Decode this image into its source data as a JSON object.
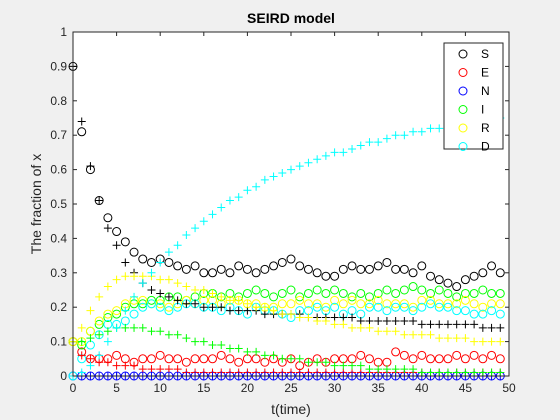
{
  "chart_data": {
    "type": "scatter",
    "title": "SEIRD model",
    "xlabel": "t(time)",
    "ylabel": "The fraction of x",
    "xlim": [
      0,
      50
    ],
    "ylim": [
      0,
      1
    ],
    "xticks": [
      "0",
      "5",
      "10",
      "15",
      "20",
      "25",
      "30",
      "35",
      "40",
      "45",
      "50"
    ],
    "yticks": [
      "0",
      "0.1",
      "0.2",
      "0.3",
      "0.4",
      "0.5",
      "0.6",
      "0.7",
      "0.8",
      "0.9",
      "1"
    ],
    "legend_position": "top-right",
    "legend": [
      {
        "marker": "circle",
        "color": "#000000",
        "label": "S"
      },
      {
        "marker": "circle",
        "color": "#ff0000",
        "label": "E"
      },
      {
        "marker": "circle",
        "color": "#0000ff",
        "label": "N"
      },
      {
        "marker": "circle",
        "color": "#00ff00",
        "label": "I"
      },
      {
        "marker": "circle",
        "color": "#ffff00",
        "label": "R"
      },
      {
        "marker": "circle",
        "color": "#00ffff",
        "label": "D"
      }
    ],
    "x": [
      0,
      1,
      2,
      3,
      4,
      5,
      6,
      7,
      8,
      9,
      10,
      11,
      12,
      13,
      14,
      15,
      16,
      17,
      18,
      19,
      20,
      21,
      22,
      23,
      24,
      25,
      26,
      27,
      28,
      29,
      30,
      31,
      32,
      33,
      34,
      35,
      36,
      37,
      38,
      39,
      40,
      41,
      42,
      43,
      44,
      45,
      46,
      47,
      48,
      49
    ],
    "series": [
      {
        "name": "S",
        "marker": "circle",
        "color": "#000000",
        "values": [
          0.9,
          0.71,
          0.6,
          0.51,
          0.46,
          0.42,
          0.39,
          0.36,
          0.34,
          0.33,
          0.34,
          0.33,
          0.32,
          0.31,
          0.32,
          0.3,
          0.3,
          0.31,
          0.3,
          0.32,
          0.31,
          0.3,
          0.31,
          0.32,
          0.33,
          0.34,
          0.32,
          0.31,
          0.3,
          0.29,
          0.29,
          0.31,
          0.32,
          0.31,
          0.31,
          0.32,
          0.33,
          0.31,
          0.31,
          0.3,
          0.32,
          0.29,
          0.28,
          0.27,
          0.26,
          0.28,
          0.29,
          0.3,
          0.32,
          0.3
        ]
      },
      {
        "name": "E",
        "marker": "circle",
        "color": "#ff0000",
        "values": [
          0.1,
          0.07,
          0.05,
          0.05,
          0.05,
          0.06,
          0.05,
          0.04,
          0.05,
          0.05,
          0.06,
          0.05,
          0.05,
          0.04,
          0.05,
          0.05,
          0.05,
          0.06,
          0.05,
          0.04,
          0.05,
          0.05,
          0.04,
          0.05,
          0.04,
          0.05,
          0.03,
          0.04,
          0.05,
          0.04,
          0.05,
          0.05,
          0.05,
          0.06,
          0.05,
          0.04,
          0.04,
          0.07,
          0.06,
          0.05,
          0.06,
          0.05,
          0.05,
          0.05,
          0.06,
          0.05,
          0.06,
          0.05,
          0.06,
          0.05
        ]
      },
      {
        "name": "N",
        "marker": "circle",
        "color": "#0000ff",
        "values": [
          0,
          0,
          0,
          0,
          0,
          0,
          0,
          0,
          0,
          0,
          0,
          0,
          0,
          0,
          0,
          0,
          0,
          0,
          0,
          0,
          0,
          0,
          0,
          0,
          0,
          0,
          0,
          0,
          0,
          0,
          0,
          0,
          0,
          0,
          0,
          0,
          0,
          0,
          0,
          0,
          0,
          0,
          0,
          0,
          0,
          0,
          0,
          0,
          0,
          0
        ]
      },
      {
        "name": "I",
        "marker": "circle",
        "color": "#00ff00",
        "values": [
          0.1,
          0.09,
          0.13,
          0.15,
          0.17,
          0.18,
          0.2,
          0.21,
          0.21,
          0.22,
          0.22,
          0.23,
          0.23,
          0.22,
          0.23,
          0.24,
          0.24,
          0.23,
          0.24,
          0.23,
          0.24,
          0.25,
          0.24,
          0.23,
          0.24,
          0.25,
          0.23,
          0.24,
          0.25,
          0.24,
          0.25,
          0.24,
          0.23,
          0.24,
          0.23,
          0.24,
          0.25,
          0.24,
          0.25,
          0.26,
          0.25,
          0.24,
          0.25,
          0.24,
          0.23,
          0.24,
          0.24,
          0.25,
          0.24,
          0.24
        ]
      },
      {
        "name": "R",
        "marker": "circle",
        "color": "#ffff00",
        "values": [
          0.1,
          0.1,
          0.13,
          0.16,
          0.18,
          0.19,
          0.21,
          0.22,
          0.22,
          0.21,
          0.21,
          0.2,
          0.21,
          0.22,
          0.21,
          0.22,
          0.22,
          0.21,
          0.22,
          0.22,
          0.21,
          0.21,
          0.2,
          0.2,
          0.21,
          0.21,
          0.22,
          0.21,
          0.21,
          0.2,
          0.22,
          0.21,
          0.22,
          0.21,
          0.21,
          0.22,
          0.21,
          0.21,
          0.21,
          0.2,
          0.22,
          0.22,
          0.21,
          0.21,
          0.21,
          0.22,
          0.21,
          0.2,
          0.21,
          0.21
        ]
      },
      {
        "name": "D",
        "marker": "circle",
        "color": "#00ffff",
        "values": [
          0,
          0.05,
          0.09,
          0.12,
          0.15,
          0.15,
          0.16,
          0.18,
          0.2,
          0.21,
          0.2,
          0.19,
          0.2,
          0.21,
          0.21,
          0.2,
          0.2,
          0.19,
          0.2,
          0.19,
          0.18,
          0.2,
          0.19,
          0.19,
          0.18,
          0.17,
          0.19,
          0.19,
          0.2,
          0.19,
          0.2,
          0.18,
          0.19,
          0.18,
          0.2,
          0.2,
          0.19,
          0.2,
          0.2,
          0.19,
          0.2,
          0.21,
          0.2,
          0.2,
          0.19,
          0.19,
          0.18,
          0.18,
          0.19,
          0.18
        ]
      },
      {
        "marker": "plus",
        "color": "#000000",
        "values": [
          0.9,
          0.74,
          0.61,
          0.51,
          0.43,
          0.38,
          0.33,
          0.3,
          0.27,
          0.25,
          0.24,
          0.23,
          0.22,
          0.21,
          0.21,
          0.2,
          0.2,
          0.2,
          0.19,
          0.19,
          0.19,
          0.19,
          0.18,
          0.18,
          0.18,
          0.18,
          0.18,
          0.17,
          0.17,
          0.17,
          0.17,
          0.17,
          0.17,
          0.16,
          0.16,
          0.16,
          0.16,
          0.16,
          0.16,
          0.16,
          0.15,
          0.15,
          0.15,
          0.15,
          0.15,
          0.15,
          0.15,
          0.14,
          0.14,
          0.14
        ]
      },
      {
        "marker": "plus",
        "color": "#ff0000",
        "values": [
          0.1,
          0.06,
          0.05,
          0.04,
          0.04,
          0.03,
          0.03,
          0.03,
          0.02,
          0.02,
          0.02,
          0.02,
          0.02,
          0.01,
          0.01,
          0.01,
          0.01,
          0.01,
          0.01,
          0.01,
          0.01,
          0.01,
          0.01,
          0.01,
          0.01,
          0.01,
          0.01,
          0.01,
          0.01,
          0.01,
          0.01,
          0.01,
          0.01,
          0.01,
          0.01,
          0.01,
          0.01,
          0.01,
          0.01,
          0.01,
          0.01,
          0.01,
          0.01,
          0.01,
          0.01,
          0.01,
          0.01,
          0.01,
          0.01,
          0.01
        ]
      },
      {
        "marker": "plus",
        "color": "#0000ff",
        "values": [
          0,
          0,
          0,
          0,
          0,
          0,
          0,
          0,
          0,
          0,
          0,
          0,
          0,
          0,
          0,
          0,
          0,
          0,
          0,
          0,
          0,
          0,
          0,
          0,
          0,
          0,
          0,
          0,
          0,
          0,
          0,
          0,
          0,
          0,
          0,
          0,
          0,
          0,
          0,
          0,
          0,
          0,
          0,
          0,
          0,
          0,
          0,
          0,
          0,
          0
        ]
      },
      {
        "marker": "plus",
        "color": "#00ff00",
        "values": [
          0.1,
          0.1,
          0.11,
          0.12,
          0.13,
          0.14,
          0.14,
          0.14,
          0.14,
          0.13,
          0.13,
          0.12,
          0.12,
          0.11,
          0.1,
          0.1,
          0.09,
          0.09,
          0.08,
          0.08,
          0.07,
          0.07,
          0.06,
          0.06,
          0.05,
          0.05,
          0.05,
          0.04,
          0.04,
          0.04,
          0.03,
          0.03,
          0.03,
          0.03,
          0.02,
          0.02,
          0.02,
          0.02,
          0.02,
          0.02,
          0.01,
          0.01,
          0.01,
          0.01,
          0.01,
          0.01,
          0.01,
          0.01,
          0.01,
          0.01
        ]
      },
      {
        "marker": "plus",
        "color": "#ffff00",
        "values": [
          0.1,
          0.14,
          0.19,
          0.23,
          0.26,
          0.28,
          0.29,
          0.29,
          0.29,
          0.29,
          0.28,
          0.28,
          0.27,
          0.26,
          0.25,
          0.25,
          0.24,
          0.23,
          0.22,
          0.22,
          0.21,
          0.2,
          0.2,
          0.19,
          0.18,
          0.18,
          0.17,
          0.17,
          0.16,
          0.16,
          0.15,
          0.15,
          0.14,
          0.14,
          0.14,
          0.13,
          0.13,
          0.13,
          0.12,
          0.12,
          0.12,
          0.12,
          0.11,
          0.11,
          0.11,
          0.11,
          0.1,
          0.1,
          0.1,
          0.1
        ]
      },
      {
        "marker": "plus",
        "color": "#00ffff",
        "values": [
          0,
          0.01,
          0.03,
          0.06,
          0.1,
          0.14,
          0.19,
          0.23,
          0.27,
          0.3,
          0.33,
          0.36,
          0.38,
          0.41,
          0.43,
          0.45,
          0.47,
          0.49,
          0.51,
          0.52,
          0.54,
          0.55,
          0.57,
          0.58,
          0.59,
          0.6,
          0.61,
          0.62,
          0.63,
          0.64,
          0.65,
          0.65,
          0.66,
          0.67,
          0.68,
          0.68,
          0.69,
          0.7,
          0.7,
          0.71,
          0.71,
          0.72,
          0.72,
          0.73,
          0.73,
          0.74,
          0.74,
          0.74,
          0.74,
          0.75
        ]
      }
    ]
  }
}
